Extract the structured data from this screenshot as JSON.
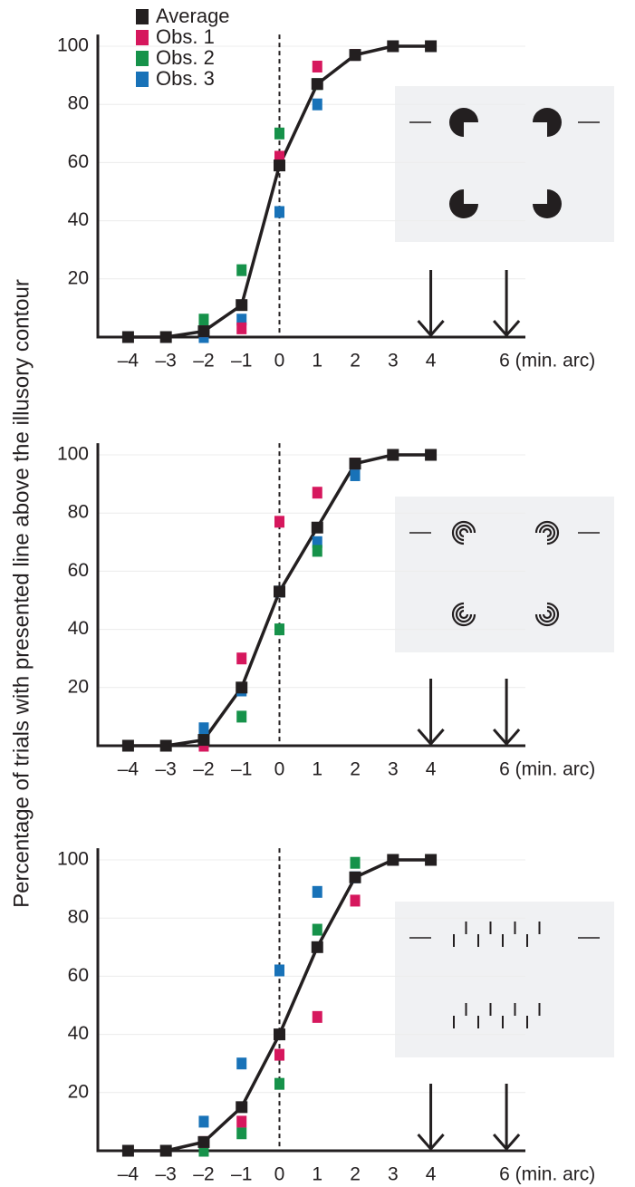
{
  "y_label": "Percentage of trials with presented line above the illusory contour",
  "chart_data": [
    {
      "type": "line",
      "x": [
        -4,
        -3,
        -2,
        -1,
        0,
        1,
        2,
        3,
        4
      ],
      "series": [
        {
          "name": "Average",
          "color": "#231f20",
          "values": [
            0,
            0,
            2,
            11,
            59,
            87,
            97,
            100,
            100
          ]
        },
        {
          "name": "Obs. 1",
          "color": "#d6175d",
          "values": [
            0,
            0,
            2,
            3,
            62,
            93,
            97,
            100,
            100
          ]
        },
        {
          "name": "Obs. 2",
          "color": "#16924a",
          "values": [
            0,
            0,
            6,
            23,
            70,
            87,
            97,
            100,
            100
          ]
        },
        {
          "name": "Obs. 3",
          "color": "#1872b8",
          "values": [
            0,
            0,
            0,
            6,
            43,
            80,
            97,
            100,
            100
          ]
        }
      ],
      "xlim": [
        -4.8,
        6.5
      ],
      "ylim": [
        0,
        104
      ],
      "xticks": [
        {
          "value": -4,
          "label": "–4"
        },
        {
          "value": -3,
          "label": "–3"
        },
        {
          "value": -2,
          "label": "–2"
        },
        {
          "value": -1,
          "label": "–1"
        },
        0,
        1,
        2,
        3,
        4,
        {
          "value": 6,
          "label": "6 (min. arc)"
        }
      ],
      "yticks": [
        20,
        40,
        60,
        80,
        100
      ],
      "grid": true,
      "legend": "upper left",
      "reference_x": 0,
      "arrows_x": [
        4,
        6
      ]
    },
    {
      "type": "line",
      "x": [
        -4,
        -3,
        -2,
        -1,
        0,
        1,
        2,
        3,
        4
      ],
      "series": [
        {
          "color": "#231f20",
          "values": [
            0,
            0,
            2,
            20,
            53,
            75,
            97,
            100,
            100
          ]
        },
        {
          "color": "#d6175d",
          "values": [
            0,
            0,
            0,
            30,
            77,
            87,
            97,
            100,
            100
          ]
        },
        {
          "color": "#16924a",
          "values": [
            0,
            0,
            2,
            10,
            40,
            67,
            97,
            100,
            100
          ]
        },
        {
          "color": "#1872b8",
          "values": [
            0,
            0,
            6,
            19,
            53,
            70,
            93,
            100,
            100
          ]
        }
      ],
      "xlim": [
        -4.8,
        6.5
      ],
      "ylim": [
        0,
        104
      ],
      "xticks": [
        {
          "value": -4,
          "label": "–4"
        },
        {
          "value": -3,
          "label": "–3"
        },
        {
          "value": -2,
          "label": "–2"
        },
        {
          "value": -1,
          "label": "–1"
        },
        0,
        1,
        2,
        3,
        4,
        {
          "value": 6,
          "label": "6 (min. arc)"
        }
      ],
      "yticks": [
        20,
        40,
        60,
        80,
        100
      ],
      "grid": true,
      "reference_x": 0,
      "arrows_x": [
        4,
        6
      ]
    },
    {
      "type": "line",
      "x": [
        -4,
        -3,
        -2,
        -1,
        0,
        1,
        2,
        3,
        4
      ],
      "series": [
        {
          "color": "#231f20",
          "values": [
            0,
            0,
            3,
            15,
            40,
            70,
            94,
            100,
            100
          ]
        },
        {
          "color": "#d6175d",
          "values": [
            0,
            0,
            3,
            10,
            33,
            46,
            86,
            100,
            100
          ]
        },
        {
          "color": "#16924a",
          "values": [
            0,
            0,
            0,
            6,
            23,
            76,
            99,
            100,
            100
          ]
        },
        {
          "color": "#1872b8",
          "values": [
            0,
            0,
            10,
            30,
            62,
            89,
            94,
            100,
            100
          ]
        }
      ],
      "xlim": [
        -4.8,
        6.5
      ],
      "ylim": [
        0,
        104
      ],
      "xticks": [
        {
          "value": -4,
          "label": "–4"
        },
        {
          "value": -3,
          "label": "–3"
        },
        {
          "value": -2,
          "label": "–2"
        },
        {
          "value": -1,
          "label": "–1"
        },
        0,
        1,
        2,
        3,
        4,
        {
          "value": 6,
          "label": "6 (min. arc)"
        }
      ],
      "yticks": [
        20,
        40,
        60,
        80,
        100
      ],
      "grid": true,
      "reference_x": 0,
      "arrows_x": [
        4,
        6
      ]
    }
  ]
}
